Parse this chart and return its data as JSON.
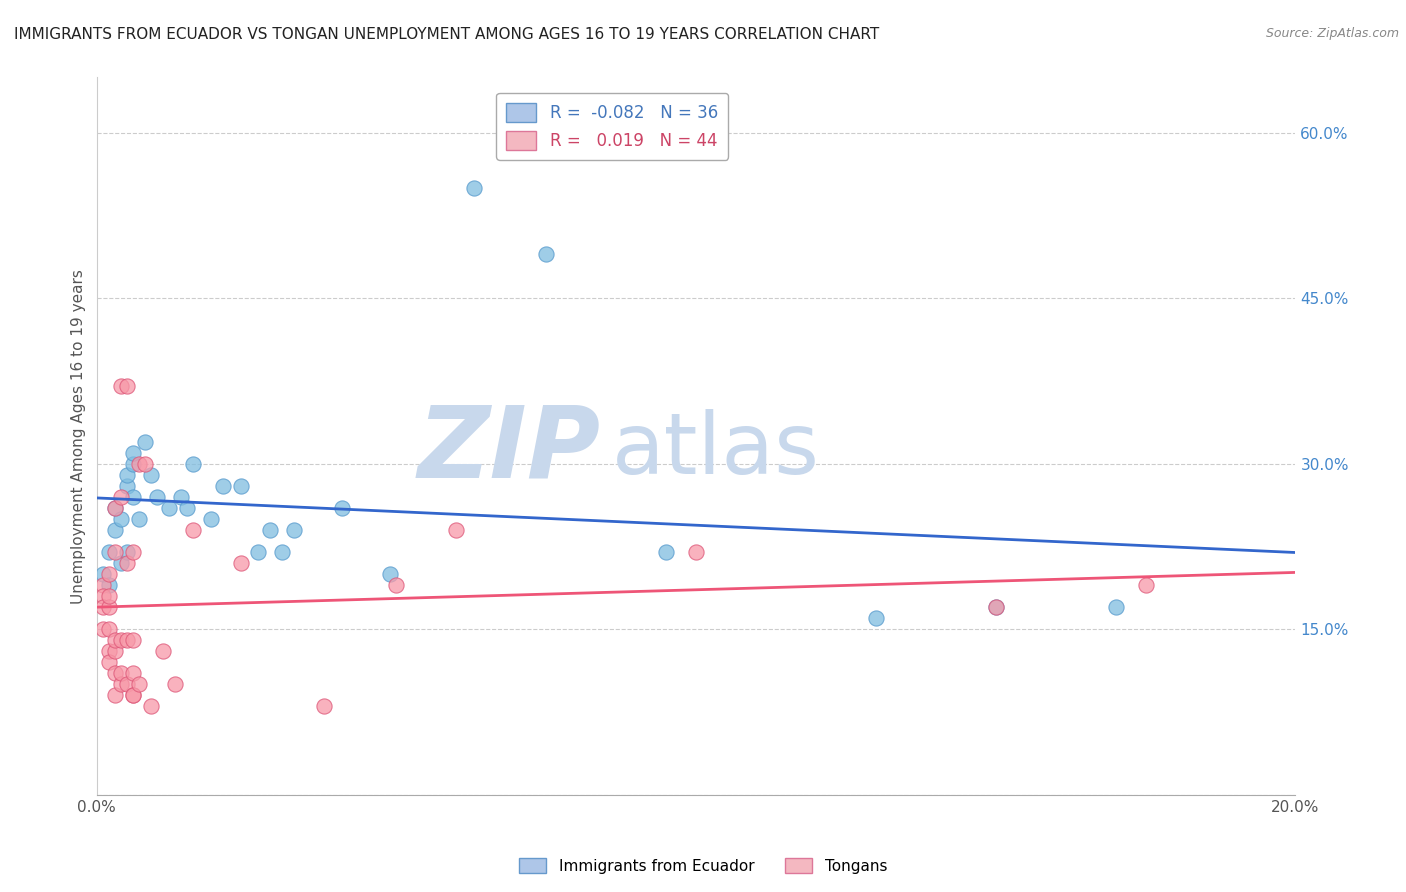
{
  "title": "IMMIGRANTS FROM ECUADOR VS TONGAN UNEMPLOYMENT AMONG AGES 16 TO 19 YEARS CORRELATION CHART",
  "source": "Source: ZipAtlas.com",
  "ylabel": "Unemployment Among Ages 16 to 19 years",
  "xlim": [
    0.0,
    0.2
  ],
  "ylim": [
    0.0,
    0.65
  ],
  "xticks": [
    0.0,
    0.04,
    0.08,
    0.12,
    0.16,
    0.2
  ],
  "yticks": [
    0.0,
    0.15,
    0.3,
    0.45,
    0.6
  ],
  "right_ytick_labels": [
    "",
    "15.0%",
    "30.0%",
    "45.0%",
    "60.0%"
  ],
  "legend_entries": [
    {
      "label": "R =  -0.082   N = 36",
      "patch_color": "#aec6e8",
      "text_color": "#4477bb"
    },
    {
      "label": "R =   0.019   N = 44",
      "patch_color": "#f4b8c1",
      "text_color": "#cc4466"
    }
  ],
  "ecuador_color": "#7fbde0",
  "ecuador_edge": "#5599cc",
  "tongan_color": "#f799a8",
  "tongan_edge": "#dd5577",
  "ecuador_line_color": "#3366cc",
  "tongan_line_color": "#ee5577",
  "watermark_zip": "ZIP",
  "watermark_atlas": "atlas",
  "watermark_color": "#c8d8ec",
  "ecuador_points": [
    [
      0.001,
      0.2
    ],
    [
      0.002,
      0.22
    ],
    [
      0.002,
      0.19
    ],
    [
      0.003,
      0.24
    ],
    [
      0.003,
      0.26
    ],
    [
      0.004,
      0.21
    ],
    [
      0.004,
      0.25
    ],
    [
      0.005,
      0.28
    ],
    [
      0.005,
      0.22
    ],
    [
      0.005,
      0.29
    ],
    [
      0.006,
      0.3
    ],
    [
      0.006,
      0.27
    ],
    [
      0.006,
      0.31
    ],
    [
      0.007,
      0.25
    ],
    [
      0.008,
      0.32
    ],
    [
      0.009,
      0.29
    ],
    [
      0.01,
      0.27
    ],
    [
      0.012,
      0.26
    ],
    [
      0.014,
      0.27
    ],
    [
      0.015,
      0.26
    ],
    [
      0.016,
      0.3
    ],
    [
      0.019,
      0.25
    ],
    [
      0.021,
      0.28
    ],
    [
      0.024,
      0.28
    ],
    [
      0.027,
      0.22
    ],
    [
      0.029,
      0.24
    ],
    [
      0.031,
      0.22
    ],
    [
      0.033,
      0.24
    ],
    [
      0.041,
      0.26
    ],
    [
      0.049,
      0.2
    ],
    [
      0.063,
      0.55
    ],
    [
      0.075,
      0.49
    ],
    [
      0.095,
      0.22
    ],
    [
      0.13,
      0.16
    ],
    [
      0.15,
      0.17
    ],
    [
      0.17,
      0.17
    ]
  ],
  "tongan_points": [
    [
      0.001,
      0.19
    ],
    [
      0.001,
      0.18
    ],
    [
      0.001,
      0.17
    ],
    [
      0.001,
      0.15
    ],
    [
      0.002,
      0.13
    ],
    [
      0.002,
      0.15
    ],
    [
      0.002,
      0.17
    ],
    [
      0.002,
      0.18
    ],
    [
      0.002,
      0.2
    ],
    [
      0.002,
      0.12
    ],
    [
      0.003,
      0.13
    ],
    [
      0.003,
      0.14
    ],
    [
      0.003,
      0.09
    ],
    [
      0.003,
      0.11
    ],
    [
      0.003,
      0.22
    ],
    [
      0.003,
      0.26
    ],
    [
      0.004,
      0.14
    ],
    [
      0.004,
      0.1
    ],
    [
      0.004,
      0.37
    ],
    [
      0.004,
      0.11
    ],
    [
      0.004,
      0.27
    ],
    [
      0.005,
      0.21
    ],
    [
      0.005,
      0.1
    ],
    [
      0.005,
      0.14
    ],
    [
      0.005,
      0.37
    ],
    [
      0.006,
      0.11
    ],
    [
      0.006,
      0.14
    ],
    [
      0.006,
      0.09
    ],
    [
      0.006,
      0.09
    ],
    [
      0.006,
      0.22
    ],
    [
      0.007,
      0.1
    ],
    [
      0.007,
      0.3
    ],
    [
      0.008,
      0.3
    ],
    [
      0.009,
      0.08
    ],
    [
      0.011,
      0.13
    ],
    [
      0.013,
      0.1
    ],
    [
      0.016,
      0.24
    ],
    [
      0.024,
      0.21
    ],
    [
      0.038,
      0.08
    ],
    [
      0.05,
      0.19
    ],
    [
      0.06,
      0.24
    ],
    [
      0.1,
      0.22
    ],
    [
      0.15,
      0.17
    ],
    [
      0.175,
      0.19
    ]
  ],
  "background_color": "#ffffff",
  "grid_color": "#cccccc",
  "title_fontsize": 11,
  "axis_label_fontsize": 11,
  "tick_fontsize": 11,
  "legend_fontsize": 12
}
